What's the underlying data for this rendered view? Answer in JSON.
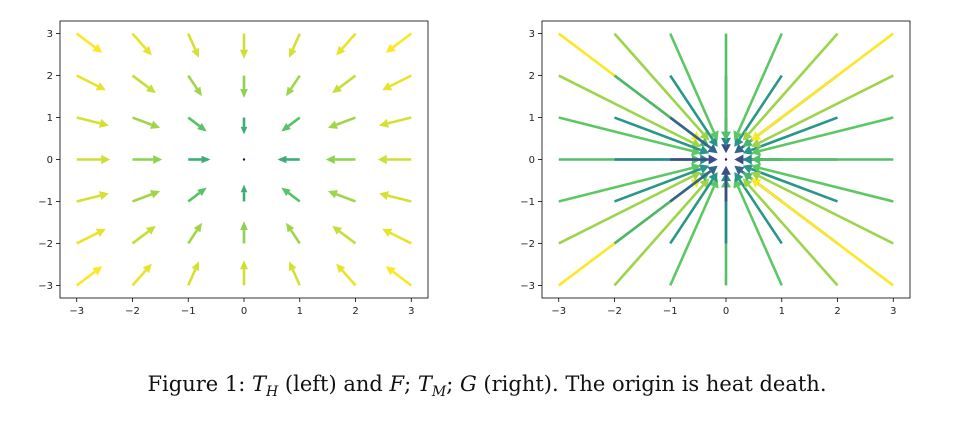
{
  "chart_data": [
    {
      "type": "quiver",
      "x": [
        -3,
        -2,
        -1,
        0,
        1,
        2,
        3
      ],
      "y": [
        -3,
        -2,
        -1,
        0,
        1,
        2,
        3
      ],
      "xticks": [
        "−3",
        "−2",
        "−1",
        "0",
        "1",
        "2",
        "3"
      ],
      "yticks": [
        "−3",
        "−2",
        "−1",
        "0",
        "1",
        "2",
        "3"
      ],
      "xlim": [
        -3.3,
        3.3
      ],
      "ylim": [
        -3.3,
        3.3
      ],
      "field": "toward origin, magnitude saturating",
      "colormap": "viridis",
      "grid": false
    },
    {
      "type": "quiver",
      "x": [
        -3,
        -2,
        -1,
        0,
        1,
        2,
        3
      ],
      "y": [
        -3,
        -2,
        -1,
        0,
        1,
        2,
        3
      ],
      "xticks": [
        "−3",
        "−2",
        "−1",
        "0",
        "1",
        "2",
        "3"
      ],
      "yticks": [
        "−3",
        "−2",
        "−1",
        "0",
        "1",
        "2",
        "3"
      ],
      "xlim": [
        -3.3,
        3.3
      ],
      "ylim": [
        -3.3,
        3.3
      ],
      "field": "toward origin, magnitude linear",
      "colormap": "viridis",
      "grid": false
    }
  ],
  "caption": {
    "prefix": "Figure 1: ",
    "t1": "T",
    "t1_sub": "H",
    "mid1": " (left) and ",
    "f": "F",
    "sep1": "; ",
    "t2": "T",
    "t2_sub": "M",
    "sep2": "; ",
    "g": "G",
    "suffix": " (right). The origin is heat death."
  }
}
